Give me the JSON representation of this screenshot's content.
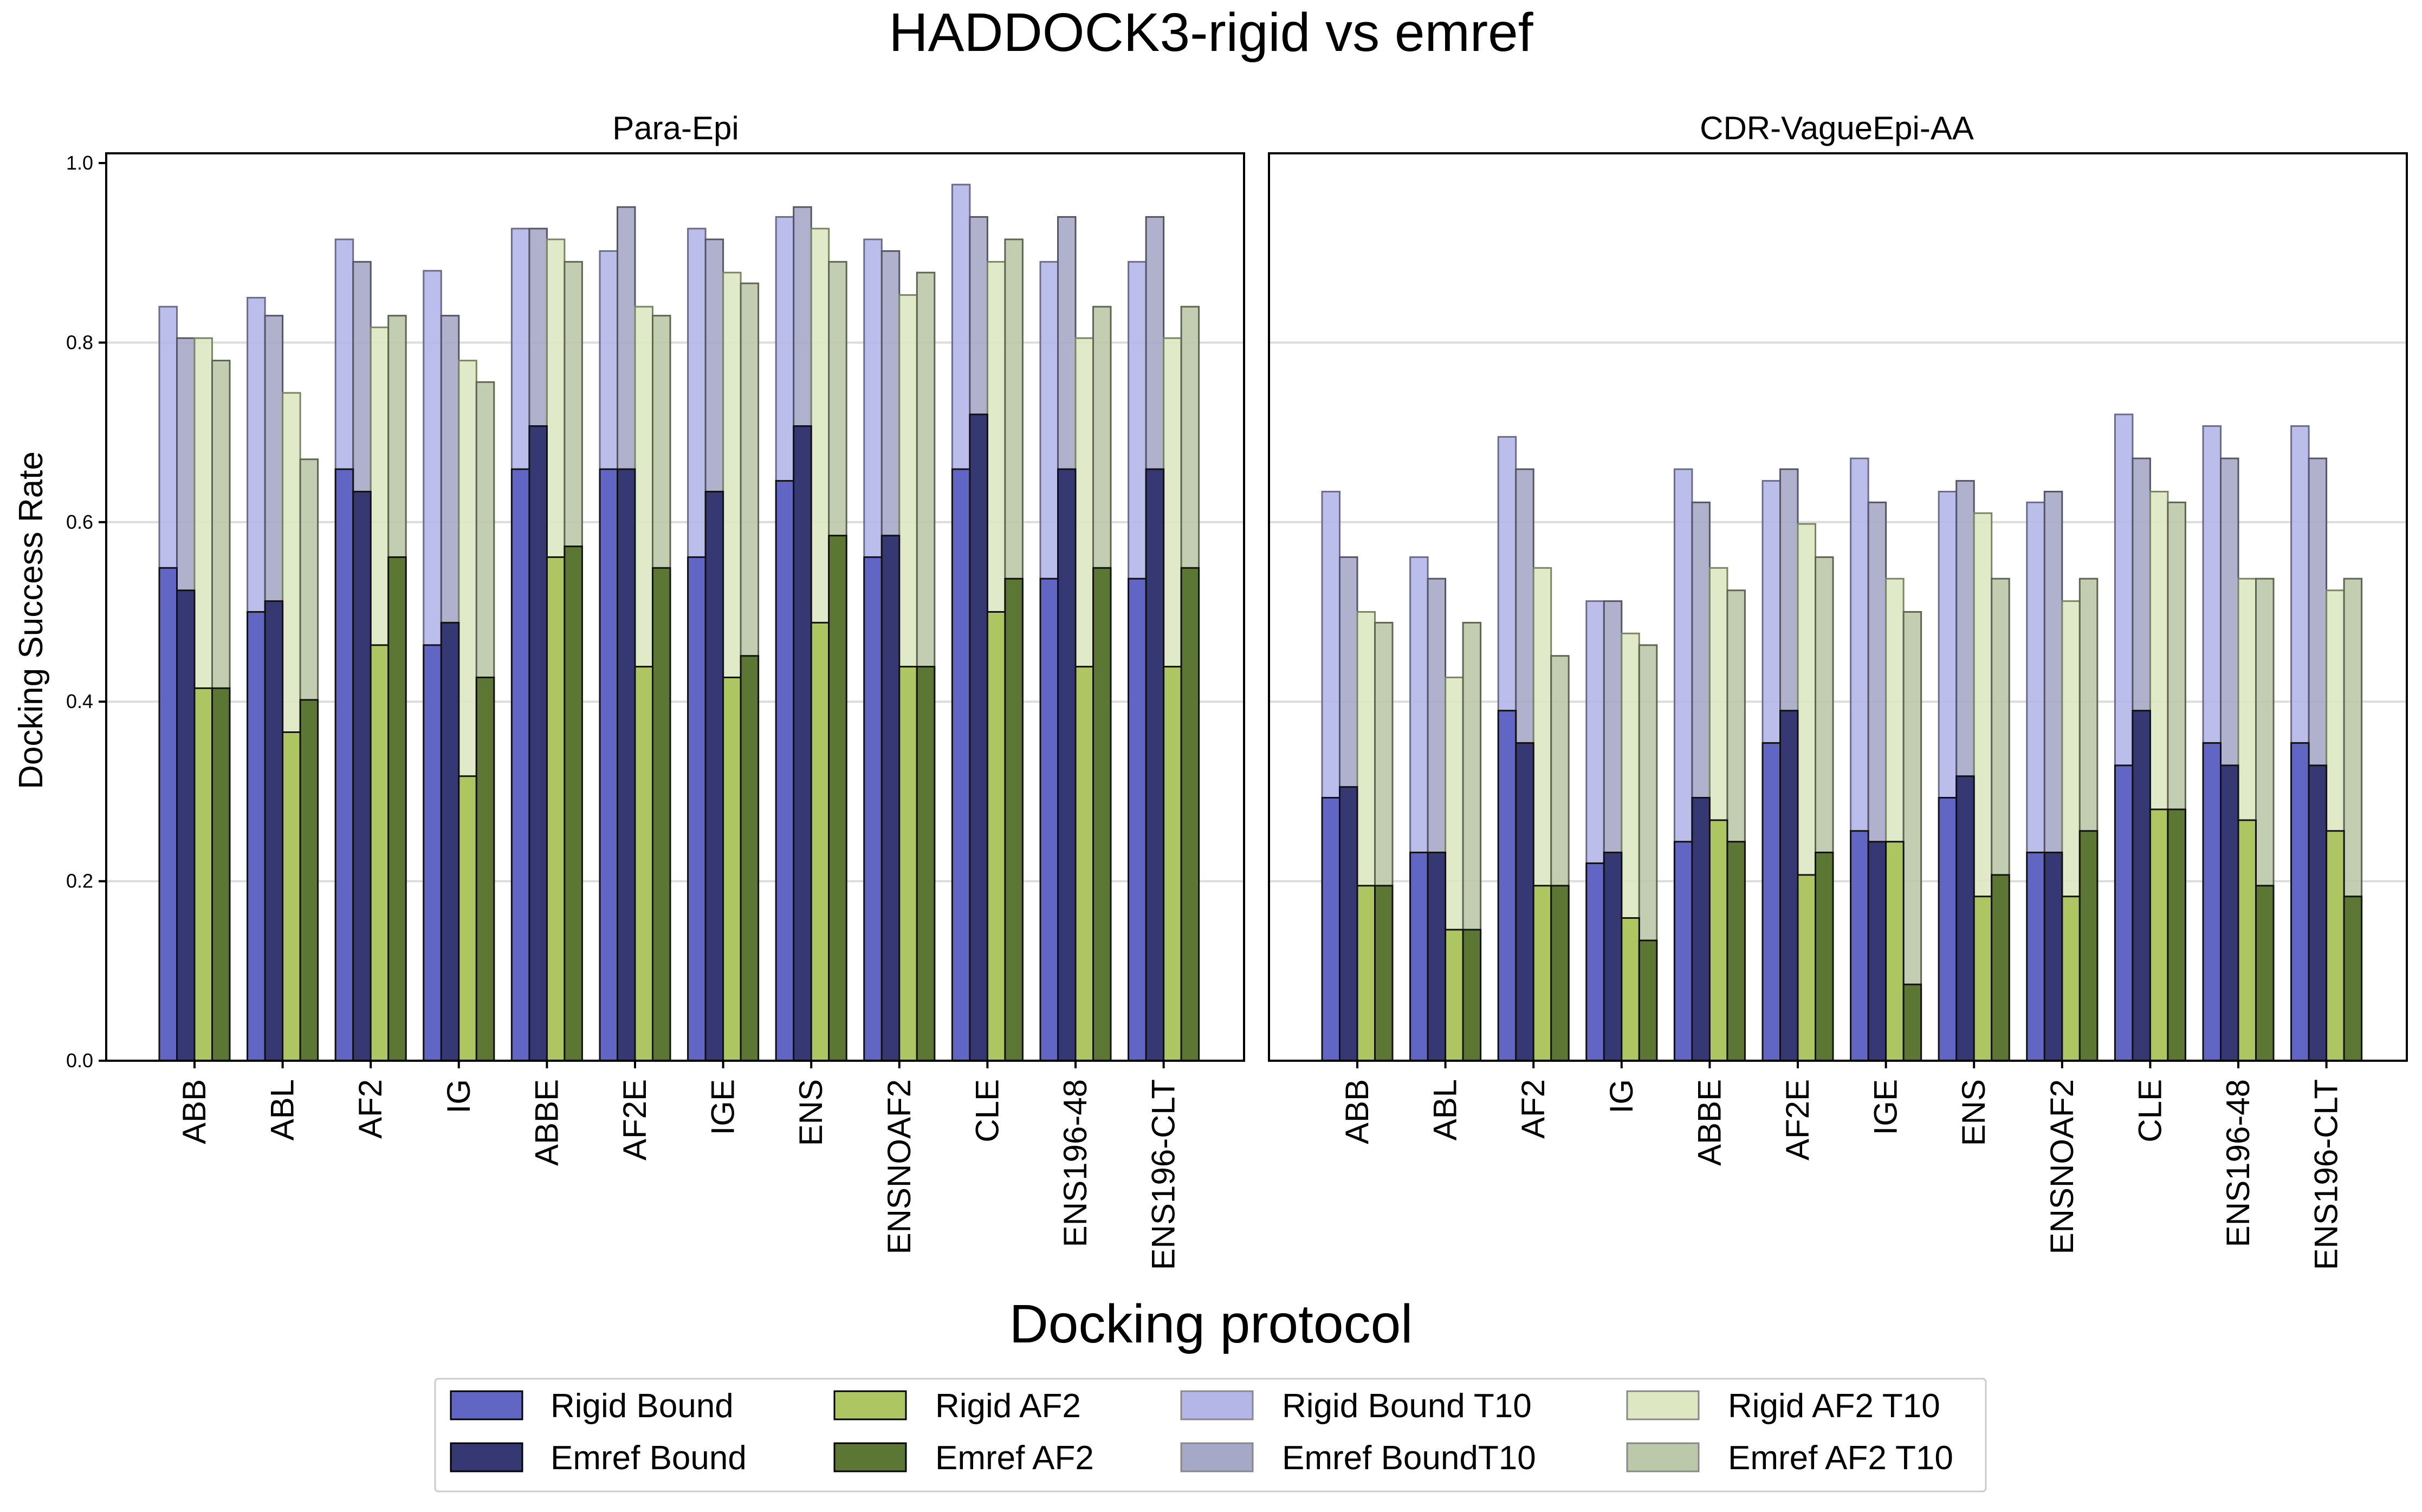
{
  "title": "HADDOCK3-rigid vs emref",
  "xlabel": "Docking protocol",
  "ylabel": "Docking Success Rate",
  "colors": {
    "rigid_bound": "#6166c4",
    "emref_bound": "#353873",
    "rigid_af2": "#aec661",
    "emref_af2": "#5c7634",
    "rigid_bound_t10": "#b4b6e8",
    "emref_bound_t10": "#a6a8c8",
    "rigid_af2_t10": "#dde7c2",
    "emref_af2_t10": "#bcc8aa",
    "grid": "#dcdcdc"
  },
  "legend": {
    "items": [
      "Rigid Bound",
      "Emref Bound",
      "Rigid AF2",
      "Emref AF2",
      "Rigid Bound T10",
      "Emref BoundT10",
      "Rigid AF2 T10",
      "Emref AF2 T10"
    ]
  },
  "chart_data": [
    {
      "type": "bar",
      "title": "Para-Epi",
      "xlabel": "Docking protocol",
      "ylabel": "Docking Success Rate",
      "ylim": [
        0,
        1.0
      ],
      "yticks": [
        "0.0",
        "0.2",
        "0.4",
        "0.6",
        "0.8",
        "1.0"
      ],
      "grid": true,
      "legend_position": "bottom",
      "categories": [
        "ABB",
        "ABL",
        "AF2",
        "IG",
        "ABBE",
        "AF2E",
        "IGE",
        "ENS",
        "ENSNOAF2",
        "CLE",
        "ENS196-48",
        "ENS196-CLT"
      ],
      "series": [
        {
          "name": "Rigid Bound T10",
          "values": [
            0.84,
            0.85,
            0.915,
            0.88,
            0.927,
            0.902,
            0.927,
            0.94,
            0.915,
            0.976,
            0.89,
            0.89
          ]
        },
        {
          "name": "Emref BoundT10",
          "values": [
            0.805,
            0.83,
            0.89,
            0.83,
            0.927,
            0.951,
            0.915,
            0.951,
            0.902,
            0.94,
            0.94,
            0.94
          ]
        },
        {
          "name": "Rigid AF2 T10",
          "values": [
            0.805,
            0.744,
            0.817,
            0.78,
            0.915,
            0.84,
            0.878,
            0.927,
            0.853,
            0.89,
            0.805,
            0.805
          ]
        },
        {
          "name": "Emref AF2 T10",
          "values": [
            0.78,
            0.67,
            0.83,
            0.756,
            0.89,
            0.83,
            0.866,
            0.89,
            0.878,
            0.915,
            0.84,
            0.84
          ]
        },
        {
          "name": "Rigid Bound",
          "values": [
            0.549,
            0.5,
            0.659,
            0.463,
            0.659,
            0.659,
            0.561,
            0.646,
            0.561,
            0.659,
            0.537,
            0.537
          ]
        },
        {
          "name": "Emref Bound",
          "values": [
            0.524,
            0.512,
            0.634,
            0.488,
            0.707,
            0.659,
            0.634,
            0.707,
            0.585,
            0.72,
            0.659,
            0.659
          ]
        },
        {
          "name": "Rigid AF2",
          "values": [
            0.415,
            0.366,
            0.463,
            0.317,
            0.561,
            0.439,
            0.427,
            0.488,
            0.439,
            0.5,
            0.439,
            0.439
          ]
        },
        {
          "name": "Emref AF2",
          "values": [
            0.415,
            0.402,
            0.561,
            0.427,
            0.573,
            0.549,
            0.451,
            0.585,
            0.439,
            0.537,
            0.549,
            0.549
          ]
        }
      ]
    },
    {
      "type": "bar",
      "title": "CDR-VagueEpi-AA",
      "xlabel": "Docking protocol",
      "ylabel": "Docking Success Rate",
      "ylim": [
        0,
        1.0
      ],
      "grid": true,
      "legend_position": "bottom",
      "categories": [
        "ABB",
        "ABL",
        "AF2",
        "IG",
        "ABBE",
        "AF2E",
        "IGE",
        "ENS",
        "ENSNOAF2",
        "CLE",
        "ENS196-48",
        "ENS196-CLT"
      ],
      "series": [
        {
          "name": "Rigid Bound T10",
          "values": [
            0.634,
            0.561,
            0.695,
            0.512,
            0.659,
            0.646,
            0.671,
            0.634,
            0.622,
            0.72,
            0.707,
            0.707
          ]
        },
        {
          "name": "Emref BoundT10",
          "values": [
            0.561,
            0.537,
            0.659,
            0.512,
            0.622,
            0.659,
            0.622,
            0.646,
            0.634,
            0.671,
            0.671,
            0.671
          ]
        },
        {
          "name": "Rigid AF2 T10",
          "values": [
            0.5,
            0.427,
            0.549,
            0.476,
            0.549,
            0.598,
            0.537,
            0.61,
            0.512,
            0.634,
            0.537,
            0.524
          ]
        },
        {
          "name": "Emref AF2 T10",
          "values": [
            0.488,
            0.488,
            0.451,
            0.463,
            0.524,
            0.561,
            0.5,
            0.537,
            0.537,
            0.622,
            0.537,
            0.537
          ]
        },
        {
          "name": "Rigid Bound",
          "values": [
            0.293,
            0.232,
            0.39,
            0.22,
            0.244,
            0.354,
            0.256,
            0.293,
            0.232,
            0.329,
            0.354,
            0.354
          ]
        },
        {
          "name": "Emref Bound",
          "values": [
            0.305,
            0.232,
            0.354,
            0.232,
            0.293,
            0.39,
            0.244,
            0.317,
            0.232,
            0.39,
            0.329,
            0.329
          ]
        },
        {
          "name": "Rigid AF2",
          "values": [
            0.195,
            0.146,
            0.195,
            0.159,
            0.268,
            0.207,
            0.244,
            0.183,
            0.183,
            0.28,
            0.268,
            0.256
          ]
        },
        {
          "name": "Emref AF2",
          "values": [
            0.195,
            0.146,
            0.195,
            0.134,
            0.244,
            0.232,
            0.085,
            0.207,
            0.256,
            0.28,
            0.195,
            0.183
          ]
        }
      ]
    }
  ]
}
